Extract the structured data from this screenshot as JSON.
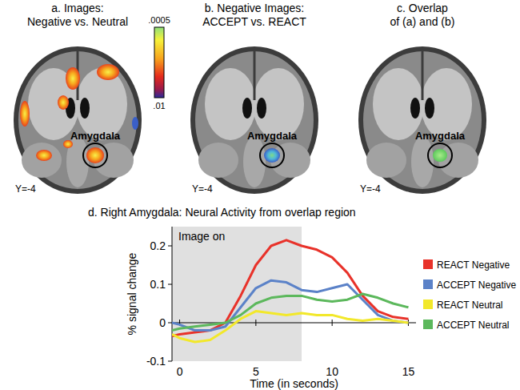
{
  "panels": [
    {
      "title_lines": [
        "a. Images:",
        "Negative vs. Neutral"
      ],
      "region_label": "Amygdala",
      "slice_label": "Y=-4"
    },
    {
      "title_lines": [
        "b. Negative Images:",
        "ACCEPT vs. REACT"
      ],
      "region_label": "Amygdala",
      "slice_label": "Y=-4"
    },
    {
      "title_lines": [
        "c. Overlap",
        "of (a) and (b)"
      ],
      "region_label": "Amygdala",
      "slice_label": "Y=-4"
    }
  ],
  "colorbar": {
    "range": [
      0.0005,
      0.01
    ],
    "ticks": [
      {
        "value": 0.0005,
        "label": ".0005"
      },
      {
        "value": 0.01,
        "label": ".01"
      }
    ]
  },
  "chart_data": {
    "type": "line",
    "title": "d. Right Amygdala: Neural Activity from overlap region",
    "x_label": "Time (in seconds)",
    "y_label": "% signal change",
    "x": [
      -0.5,
      0,
      1,
      2,
      3,
      4,
      5,
      6,
      7,
      8,
      9,
      10,
      11,
      12,
      13,
      14,
      15
    ],
    "series": [
      {
        "name": "REACT Negative",
        "color": "#e8322a",
        "values": [
          -0.035,
          -0.03,
          -0.025,
          -0.02,
          0.0,
          0.07,
          0.15,
          0.2,
          0.215,
          0.2,
          0.19,
          0.17,
          0.13,
          0.07,
          0.03,
          0.015,
          0.01
        ]
      },
      {
        "name": "ACCEPT Negative",
        "color": "#5b82c8",
        "values": [
          0.0,
          -0.005,
          -0.02,
          -0.02,
          -0.01,
          0.04,
          0.09,
          0.11,
          0.105,
          0.085,
          0.08,
          0.09,
          0.1,
          0.06,
          0.02,
          0.005,
          0.0
        ]
      },
      {
        "name": "REACT Neutral",
        "color": "#f2e82a",
        "values": [
          -0.03,
          -0.04,
          -0.05,
          -0.045,
          -0.02,
          0.01,
          0.03,
          0.025,
          0.02,
          0.025,
          0.02,
          0.02,
          0.01,
          0.005,
          0.01,
          0.005,
          0.0
        ]
      },
      {
        "name": "ACCEPT Neutral",
        "color": "#5cb85c",
        "values": [
          -0.02,
          -0.015,
          -0.01,
          -0.005,
          0.0,
          0.02,
          0.05,
          0.065,
          0.07,
          0.07,
          0.06,
          0.055,
          0.06,
          0.075,
          0.065,
          0.05,
          0.04
        ]
      }
    ],
    "xlim": [
      -0.5,
      15.5
    ],
    "xticks": [
      0,
      5,
      10,
      15
    ],
    "ylim": [
      -0.1,
      0.25
    ],
    "yticks": [
      -0.1,
      0,
      0.1,
      0.2
    ],
    "shaded_region": {
      "label": "Image on",
      "x": [
        -0.5,
        8
      ]
    },
    "legend": "right"
  }
}
